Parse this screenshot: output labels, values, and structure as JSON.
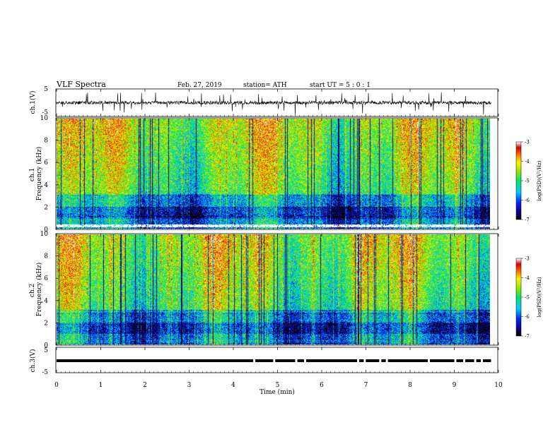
{
  "header": {
    "title": "VLF  Spectra",
    "date": "Feb. 27, 2019",
    "station": "station= ATH",
    "start_ut": "start  UT  =    5  : 0  : 1"
  },
  "chart_data": [
    {
      "id": "ch1_waveform",
      "type": "line",
      "ylabel": "ch.1(V)",
      "ylim": [
        -5,
        5
      ],
      "y_ticks": [
        "5",
        "-5"
      ],
      "x_range_min": [
        0,
        9.83
      ],
      "baseline_v": 0.0,
      "description_hidden": "noisy broadband waveform with impulsive spikes"
    },
    {
      "id": "ch1_spectrogram",
      "type": "heatmap",
      "ylabel": "ch.1 Frequency (kHz)",
      "ylim": [
        0,
        10
      ],
      "y_ticks": [
        "10",
        "8",
        "6",
        "4",
        "2",
        "0"
      ],
      "x_range_min": [
        0,
        9.83
      ],
      "colorbar": {
        "label": "log(PSD)(V²/Hz)",
        "range": [
          -7,
          -3
        ],
        "ticks": [
          "-3",
          "-4",
          "-5",
          "-6",
          "-7"
        ]
      }
    },
    {
      "id": "ch2_spectrogram",
      "type": "heatmap",
      "ylabel": "ch.2 Frequency (kHz)",
      "ylim": [
        0,
        10
      ],
      "y_ticks": [
        "10",
        "8",
        "6",
        "4",
        "2",
        "0"
      ],
      "x_range_min": [
        0,
        9.83
      ],
      "colorbar": {
        "label": "log(PSD)(V²/Hz)",
        "range": [
          -7,
          -3
        ],
        "ticks": [
          "-3",
          "-4",
          "-5",
          "-6",
          "-7"
        ]
      }
    },
    {
      "id": "ch3_signal",
      "type": "line",
      "ylabel": "ch.3(V)",
      "ylim": [
        -5,
        5
      ],
      "y_ticks": [
        "5",
        "-5"
      ],
      "x_range_min": [
        0,
        9.83
      ],
      "level_v": -1.5
    }
  ],
  "x_axis": {
    "label": "Time  (min)",
    "range": [
      0,
      10
    ],
    "ticks": [
      "0",
      "1",
      "2",
      "3",
      "4",
      "5",
      "6",
      "7",
      "8",
      "9",
      "10"
    ]
  }
}
